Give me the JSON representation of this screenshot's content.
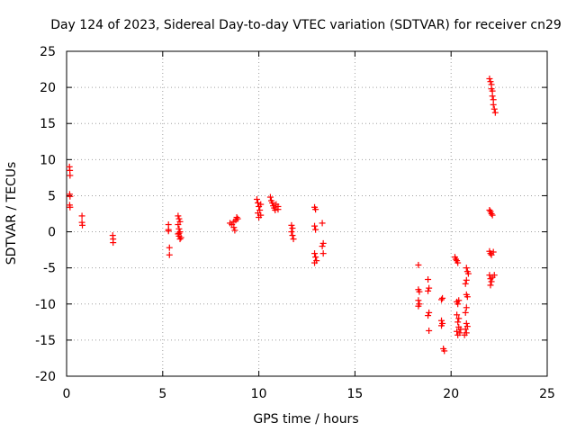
{
  "chart_data": {
    "type": "scatter",
    "title": "Day 124 of 2023, Sidereal Day-to-day VTEC variation (SDTVAR) for receiver cn29",
    "xlabel": "GPS time / hours",
    "ylabel": "SDTVAR / TECUs",
    "xlim": [
      0,
      25
    ],
    "ylim": [
      -20,
      25
    ],
    "xticks": [
      0,
      5,
      10,
      15,
      20,
      25
    ],
    "yticks": [
      -20,
      -15,
      -10,
      -5,
      0,
      5,
      10,
      15,
      20,
      25
    ],
    "grid": true,
    "marker": "+",
    "color": "#ff0000",
    "series": [
      {
        "name": "SDTVAR",
        "points": [
          [
            0.15,
            9.0
          ],
          [
            0.17,
            8.5
          ],
          [
            0.18,
            7.8
          ],
          [
            0.16,
            5.2
          ],
          [
            0.18,
            4.9
          ],
          [
            0.16,
            3.7
          ],
          [
            0.18,
            3.4
          ],
          [
            0.8,
            2.2
          ],
          [
            0.8,
            1.3
          ],
          [
            0.82,
            0.9
          ],
          [
            2.4,
            -0.5
          ],
          [
            2.42,
            -1.0
          ],
          [
            2.42,
            -1.5
          ],
          [
            5.3,
            1.0
          ],
          [
            5.3,
            0.3
          ],
          [
            5.3,
            0.1
          ],
          [
            5.35,
            -2.2
          ],
          [
            5.35,
            -3.2
          ],
          [
            5.8,
            2.2
          ],
          [
            5.85,
            1.8
          ],
          [
            5.9,
            1.4
          ],
          [
            5.8,
            1.0
          ],
          [
            5.85,
            0.4
          ],
          [
            5.9,
            0.0
          ],
          [
            5.8,
            -0.3
          ],
          [
            5.85,
            -0.6
          ],
          [
            5.9,
            -1.0
          ],
          [
            5.95,
            -0.8
          ],
          [
            5.85,
            -0.2
          ],
          [
            8.5,
            1.2
          ],
          [
            8.6,
            1.0
          ],
          [
            8.7,
            0.6
          ],
          [
            8.75,
            0.2
          ],
          [
            8.8,
            1.6
          ],
          [
            8.85,
            2.0
          ],
          [
            8.9,
            1.8
          ],
          [
            8.7,
            1.4
          ],
          [
            9.9,
            4.5
          ],
          [
            9.95,
            4.0
          ],
          [
            10.0,
            3.5
          ],
          [
            10.05,
            3.0
          ],
          [
            9.95,
            2.6
          ],
          [
            10.1,
            2.3
          ],
          [
            10.0,
            2.0
          ],
          [
            10.1,
            3.8
          ],
          [
            10.6,
            4.8
          ],
          [
            10.65,
            4.3
          ],
          [
            10.7,
            4.0
          ],
          [
            10.75,
            3.6
          ],
          [
            10.8,
            3.3
          ],
          [
            10.85,
            3.0
          ],
          [
            10.9,
            3.8
          ],
          [
            11.0,
            3.5
          ],
          [
            11.0,
            3.1
          ],
          [
            11.7,
            0.9
          ],
          [
            11.75,
            0.5
          ],
          [
            11.7,
            0.0
          ],
          [
            11.75,
            -0.5
          ],
          [
            11.8,
            -1.0
          ],
          [
            12.9,
            3.4
          ],
          [
            12.95,
            3.1
          ],
          [
            12.9,
            0.8
          ],
          [
            12.95,
            0.3
          ],
          [
            12.9,
            -3.0
          ],
          [
            12.95,
            -3.5
          ],
          [
            13.0,
            -4.0
          ],
          [
            12.9,
            -4.3
          ],
          [
            13.3,
            1.2
          ],
          [
            13.35,
            -1.6
          ],
          [
            13.3,
            -2.0
          ],
          [
            13.35,
            -3.0
          ],
          [
            18.3,
            -4.6
          ],
          [
            18.3,
            -8.0
          ],
          [
            18.35,
            -8.3
          ],
          [
            18.3,
            -9.5
          ],
          [
            18.35,
            -10.0
          ],
          [
            18.3,
            -10.3
          ],
          [
            18.8,
            -6.6
          ],
          [
            18.85,
            -7.8
          ],
          [
            18.8,
            -8.2
          ],
          [
            18.85,
            -11.2
          ],
          [
            18.8,
            -11.6
          ],
          [
            18.85,
            -13.7
          ],
          [
            19.5,
            -9.4
          ],
          [
            19.55,
            -9.2
          ],
          [
            19.5,
            -12.3
          ],
          [
            19.55,
            -12.7
          ],
          [
            19.5,
            -13.0
          ],
          [
            19.6,
            -16.2
          ],
          [
            19.65,
            -16.5
          ],
          [
            20.2,
            -3.5
          ],
          [
            20.25,
            -3.8
          ],
          [
            20.3,
            -4.0
          ],
          [
            20.35,
            -4.3
          ],
          [
            20.3,
            -9.7
          ],
          [
            20.35,
            -10.0
          ],
          [
            20.4,
            -9.5
          ],
          [
            20.3,
            -11.5
          ],
          [
            20.4,
            -12.0
          ],
          [
            20.35,
            -12.5
          ],
          [
            20.4,
            -13.2
          ],
          [
            20.3,
            -13.8
          ],
          [
            20.35,
            -14.3
          ],
          [
            20.45,
            -14.0
          ],
          [
            20.5,
            -13.5
          ],
          [
            20.8,
            -5.0
          ],
          [
            20.85,
            -5.5
          ],
          [
            20.9,
            -5.8
          ],
          [
            20.8,
            -6.7
          ],
          [
            20.75,
            -7.2
          ],
          [
            20.8,
            -8.7
          ],
          [
            20.85,
            -9.0
          ],
          [
            20.8,
            -10.5
          ],
          [
            20.75,
            -11.2
          ],
          [
            20.8,
            -12.7
          ],
          [
            20.85,
            -13.1
          ],
          [
            20.75,
            -13.5
          ],
          [
            20.8,
            -14.0
          ],
          [
            20.7,
            -14.3
          ],
          [
            22.0,
            21.2
          ],
          [
            22.05,
            20.8
          ],
          [
            22.1,
            20.4
          ],
          [
            22.1,
            19.8
          ],
          [
            22.15,
            19.5
          ],
          [
            22.15,
            18.8
          ],
          [
            22.2,
            18.3
          ],
          [
            22.2,
            17.6
          ],
          [
            22.25,
            17.0
          ],
          [
            22.3,
            16.5
          ],
          [
            22.0,
            3.0
          ],
          [
            22.05,
            2.8
          ],
          [
            22.1,
            2.5
          ],
          [
            22.15,
            2.3
          ],
          [
            22.0,
            -2.7
          ],
          [
            22.05,
            -3.0
          ],
          [
            22.1,
            -3.2
          ],
          [
            22.2,
            -2.8
          ],
          [
            22.0,
            -6.0
          ],
          [
            22.05,
            -6.5
          ],
          [
            22.1,
            -6.9
          ],
          [
            22.15,
            -6.3
          ],
          [
            22.05,
            -7.4
          ],
          [
            22.25,
            -6.0
          ]
        ]
      }
    ]
  }
}
